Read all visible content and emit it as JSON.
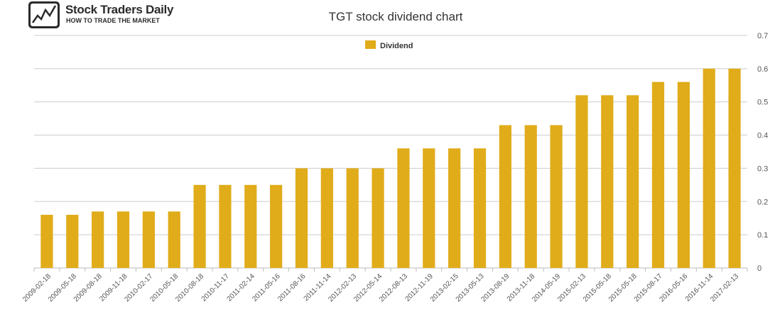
{
  "brand": {
    "name": "Stock Traders Daily",
    "tagline": "HOW TO TRADE THE MARKET"
  },
  "chart_data": {
    "type": "bar",
    "title": "TGT stock dividend chart",
    "xlabel": "",
    "ylabel": "",
    "categories": [
      "2009-02-18",
      "2009-05-18",
      "2009-08-18",
      "2009-11-18",
      "2010-02-17",
      "2010-05-18",
      "2010-08-18",
      "2010-11-17",
      "2011-02-14",
      "2011-05-16",
      "2011-08-16",
      "2011-11-14",
      "2012-02-13",
      "2012-05-14",
      "2012-08-13",
      "2012-11-19",
      "2013-02-15",
      "2013-05-13",
      "2013-08-19",
      "2013-11-18",
      "2014-05-19",
      "2015-02-13",
      "2015-05-18",
      "2015-05-18",
      "2015-08-17",
      "2016-05-16",
      "2016-11-14",
      "2017-02-13"
    ],
    "series": [
      {
        "name": "Dividend",
        "color": "#e0ac1a",
        "values": [
          0.16,
          0.16,
          0.17,
          0.17,
          0.17,
          0.17,
          0.25,
          0.25,
          0.25,
          0.25,
          0.3,
          0.3,
          0.3,
          0.3,
          0.36,
          0.36,
          0.36,
          0.36,
          0.43,
          0.43,
          0.43,
          0.52,
          0.52,
          0.52,
          0.56,
          0.56,
          0.6,
          0.6
        ]
      }
    ],
    "yticks": [
      "0",
      "0.1",
      "0.2",
      "0.3",
      "0.4",
      "0.5",
      "0.6",
      "0.7"
    ],
    "ylim": [
      0,
      0.7
    ],
    "grid": true,
    "legend_position": "top-center"
  }
}
